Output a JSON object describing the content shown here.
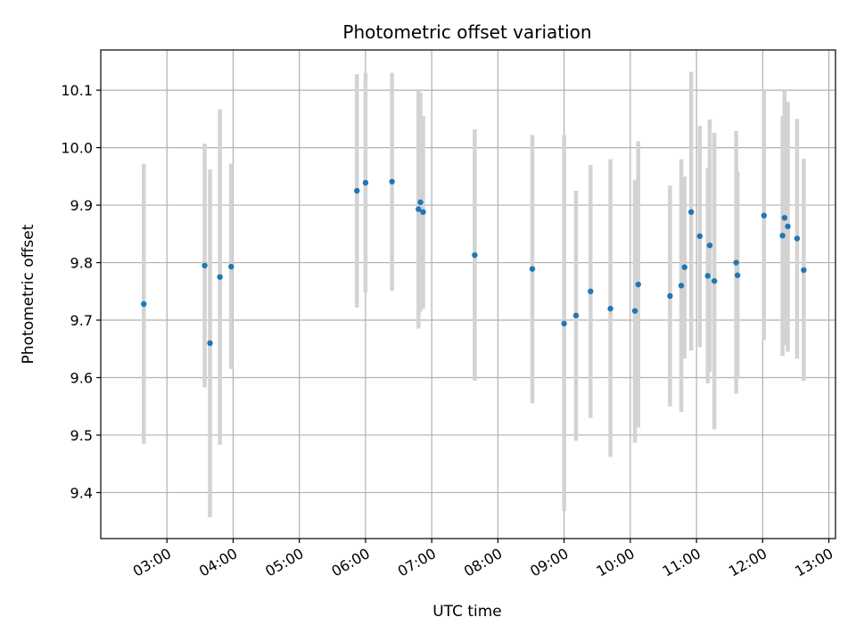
{
  "chart_data": {
    "type": "scatter",
    "title": "Photometric offset variation",
    "xlabel": "UTC time",
    "ylabel": "Photometric offset",
    "x_unit": "hours (UTC)",
    "xlim": [
      2.0,
      13.1
    ],
    "ylim": [
      9.32,
      10.17
    ],
    "grid": true,
    "marker_color": "#1f77b4",
    "errorbar_color": "#d3d3d3",
    "x_ticks": [
      {
        "value": 3,
        "label": "03:00"
      },
      {
        "value": 4,
        "label": "04:00"
      },
      {
        "value": 5,
        "label": "05:00"
      },
      {
        "value": 6,
        "label": "06:00"
      },
      {
        "value": 7,
        "label": "07:00"
      },
      {
        "value": 8,
        "label": "08:00"
      },
      {
        "value": 9,
        "label": "09:00"
      },
      {
        "value": 10,
        "label": "10:00"
      },
      {
        "value": 11,
        "label": "11:00"
      },
      {
        "value": 12,
        "label": "12:00"
      },
      {
        "value": 13,
        "label": "13:00"
      }
    ],
    "y_ticks": [
      {
        "value": 9.4,
        "label": "9.4"
      },
      {
        "value": 9.5,
        "label": "9.5"
      },
      {
        "value": 9.6,
        "label": "9.6"
      },
      {
        "value": 9.7,
        "label": "9.7"
      },
      {
        "value": 9.8,
        "label": "9.8"
      },
      {
        "value": 9.9,
        "label": "9.9"
      },
      {
        "value": 10.0,
        "label": "10.0"
      },
      {
        "value": 10.1,
        "label": "10.1"
      }
    ],
    "points": [
      {
        "x": 2.65,
        "y": 9.728,
        "err_low": 9.485,
        "err_high": 9.972
      },
      {
        "x": 3.57,
        "y": 9.795,
        "err_low": 9.583,
        "err_high": 10.007
      },
      {
        "x": 3.65,
        "y": 9.66,
        "err_low": 9.357,
        "err_high": 9.962
      },
      {
        "x": 3.8,
        "y": 9.775,
        "err_low": 9.483,
        "err_high": 10.067
      },
      {
        "x": 3.97,
        "y": 9.793,
        "err_low": 9.615,
        "err_high": 9.972
      },
      {
        "x": 5.87,
        "y": 9.925,
        "err_low": 9.722,
        "err_high": 10.128
      },
      {
        "x": 6.0,
        "y": 9.939,
        "err_low": 9.748,
        "err_high": 10.13
      },
      {
        "x": 6.4,
        "y": 9.941,
        "err_low": 9.751,
        "err_high": 10.13
      },
      {
        "x": 6.8,
        "y": 9.893,
        "err_low": 9.685,
        "err_high": 10.1
      },
      {
        "x": 6.83,
        "y": 9.905,
        "err_low": 9.715,
        "err_high": 10.095
      },
      {
        "x": 6.87,
        "y": 9.888,
        "err_low": 9.72,
        "err_high": 10.055
      },
      {
        "x": 7.65,
        "y": 9.813,
        "err_low": 9.595,
        "err_high": 10.032
      },
      {
        "x": 8.52,
        "y": 9.789,
        "err_low": 9.555,
        "err_high": 10.022
      },
      {
        "x": 9.0,
        "y": 9.694,
        "err_low": 9.368,
        "err_high": 10.022
      },
      {
        "x": 9.18,
        "y": 9.708,
        "err_low": 9.49,
        "err_high": 9.925
      },
      {
        "x": 9.4,
        "y": 9.75,
        "err_low": 9.53,
        "err_high": 9.97
      },
      {
        "x": 9.7,
        "y": 9.72,
        "err_low": 9.462,
        "err_high": 9.98
      },
      {
        "x": 10.07,
        "y": 9.716,
        "err_low": 9.487,
        "err_high": 9.944
      },
      {
        "x": 10.12,
        "y": 9.762,
        "err_low": 9.513,
        "err_high": 10.011
      },
      {
        "x": 10.6,
        "y": 9.742,
        "err_low": 9.55,
        "err_high": 9.934
      },
      {
        "x": 10.77,
        "y": 9.76,
        "err_low": 9.54,
        "err_high": 9.98
      },
      {
        "x": 10.82,
        "y": 9.792,
        "err_low": 9.633,
        "err_high": 9.95
      },
      {
        "x": 10.92,
        "y": 9.888,
        "err_low": 9.647,
        "err_high": 10.132
      },
      {
        "x": 11.05,
        "y": 9.846,
        "err_low": 9.653,
        "err_high": 10.038
      },
      {
        "x": 11.17,
        "y": 9.777,
        "err_low": 9.59,
        "err_high": 9.965
      },
      {
        "x": 11.2,
        "y": 9.83,
        "err_low": 9.61,
        "err_high": 10.049
      },
      {
        "x": 11.27,
        "y": 9.768,
        "err_low": 9.51,
        "err_high": 10.026
      },
      {
        "x": 11.6,
        "y": 9.8,
        "err_low": 9.572,
        "err_high": 10.029
      },
      {
        "x": 11.62,
        "y": 9.778,
        "err_low": 9.598,
        "err_high": 9.958
      },
      {
        "x": 12.02,
        "y": 9.882,
        "err_low": 9.665,
        "err_high": 10.1
      },
      {
        "x": 12.3,
        "y": 9.847,
        "err_low": 9.638,
        "err_high": 10.055
      },
      {
        "x": 12.33,
        "y": 9.878,
        "err_low": 9.656,
        "err_high": 10.1
      },
      {
        "x": 12.38,
        "y": 9.863,
        "err_low": 9.645,
        "err_high": 10.08
      },
      {
        "x": 12.52,
        "y": 9.842,
        "err_low": 9.633,
        "err_high": 10.05
      },
      {
        "x": 12.62,
        "y": 9.787,
        "err_low": 9.594,
        "err_high": 9.981
      }
    ]
  }
}
